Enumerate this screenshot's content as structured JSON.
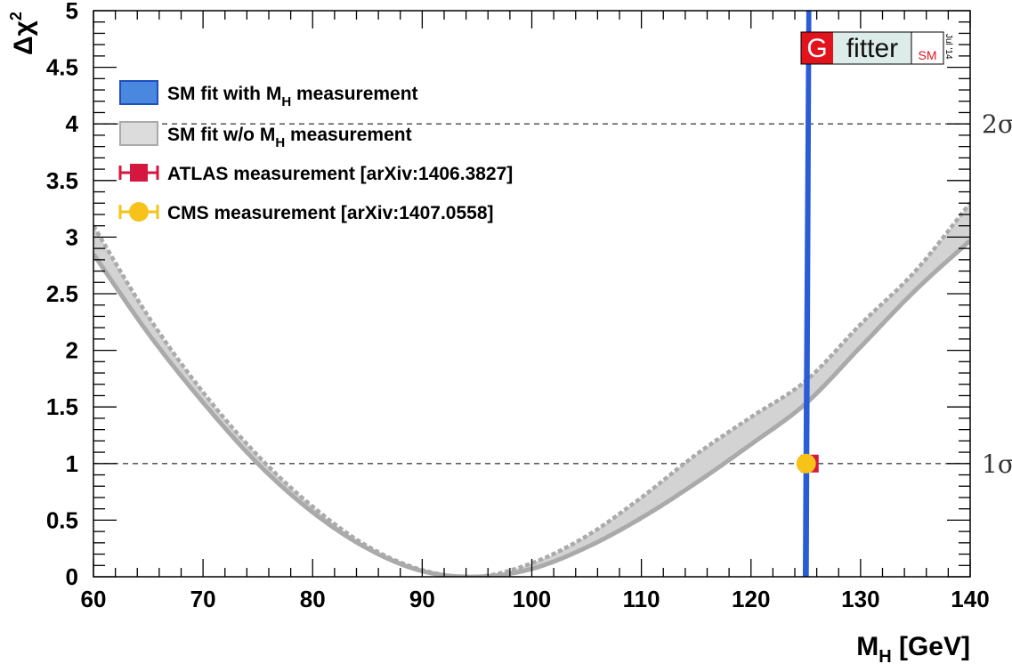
{
  "chart_data": {
    "type": "line",
    "xlabel": "M",
    "xlabel_sub": "H",
    "xlabel_unit": " [GeV]",
    "ylabel": "Δχ",
    "ylabel_sup": "2",
    "xlim": [
      60,
      140
    ],
    "ylim": [
      0,
      5
    ],
    "x_ticks": [
      "60",
      "70",
      "80",
      "90",
      "100",
      "110",
      "120",
      "130",
      "140"
    ],
    "y_ticks": [
      "0",
      "0.5",
      "1",
      "1.5",
      "2",
      "2.5",
      "3",
      "3.5",
      "4",
      "4.5",
      "5"
    ],
    "reference_lines": [
      {
        "y": 1,
        "label": "1σ"
      },
      {
        "y": 4,
        "label": "2σ"
      }
    ],
    "series": [
      {
        "name": "SM fit with M_H measurement",
        "style": "blue parabola",
        "x_lower": [
          124.93,
          125.01,
          125.09,
          125.17,
          125.25
        ],
        "x_upper": [
          125.07,
          125.13,
          125.19,
          125.25,
          125.31
        ],
        "color": "#2a5cd6"
      },
      {
        "name": "SM fit w/o M_H measurement",
        "style": "grey band",
        "x": [
          60,
          65,
          70,
          75,
          80,
          85,
          90,
          95,
          100,
          105,
          110,
          115,
          120,
          125,
          130,
          135,
          140
        ],
        "y_low": [
          2.85,
          2.15,
          1.54,
          1.0,
          0.57,
          0.25,
          0.05,
          0.0,
          0.07,
          0.26,
          0.52,
          0.83,
          1.17,
          1.53,
          2.03,
          2.53,
          2.97
        ],
        "y_high": [
          3.1,
          2.3,
          1.63,
          1.07,
          0.62,
          0.27,
          0.06,
          0.0,
          0.12,
          0.36,
          0.7,
          1.08,
          1.41,
          1.73,
          2.23,
          2.7,
          3.3
        ],
        "color": "#d3d3d3"
      },
      {
        "name": "ATLAS measurement [arXiv:1406.3827]",
        "style": "point",
        "x": 125.36,
        "y": 1,
        "xerr": 0.41,
        "color": "#d5173f"
      },
      {
        "name": "CMS measurement [arXiv:1407.0558]",
        "style": "point",
        "x": 125.03,
        "y": 1,
        "xerr": 0.3,
        "color": "#f7c318"
      }
    ],
    "legend_position": "top-left",
    "grid": false
  },
  "logo": {
    "letter": "G",
    "word": "fitter",
    "suffix": "SM",
    "date": "Jul '14",
    "letter_bg": "#e1131d",
    "word_bg": "#dcece8"
  }
}
